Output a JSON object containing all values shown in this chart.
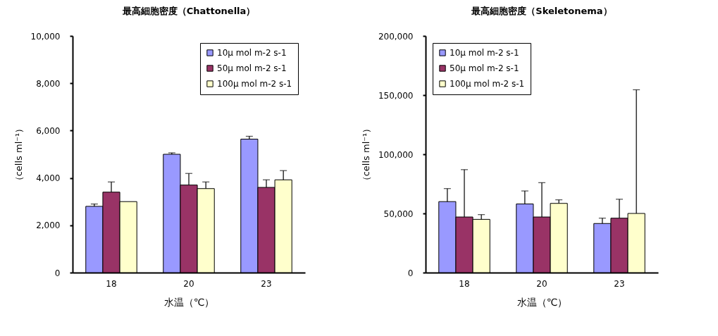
{
  "chart_data": [
    {
      "type": "bar",
      "title": "最高細胞密度（Chattonella）",
      "xlabel": "水温（℃）",
      "ylabel": "（cells ml⁻¹）",
      "categories": [
        "18",
        "20",
        "23"
      ],
      "ylim": [
        0,
        10000
      ],
      "yticks": [
        {
          "value": 0,
          "label": "0"
        },
        {
          "value": 2000,
          "label": "2,000"
        },
        {
          "value": 4000,
          "label": "4,000"
        },
        {
          "value": 6000,
          "label": "6,000"
        },
        {
          "value": 8000,
          "label": "8,000"
        },
        {
          "value": 10000,
          "label": "10,000"
        }
      ],
      "legend": "top right",
      "series": [
        {
          "name": "10μ mol m-2 s-1",
          "color": "#9999ff",
          "values": [
            2800,
            5000,
            5640
          ],
          "errors": [
            100,
            60,
            120
          ]
        },
        {
          "name": "50μ mol m-2 s-1",
          "color": "#993366",
          "values": [
            3400,
            3700,
            3600
          ],
          "errors": [
            430,
            490,
            320
          ]
        },
        {
          "name": "100μ mol m-2 s-1",
          "color": "#ffffcc",
          "values": [
            3000,
            3550,
            3920
          ],
          "errors": [
            null,
            280,
            390
          ]
        }
      ]
    },
    {
      "type": "bar",
      "title": "最高細胞密度（Skeletonema）",
      "xlabel": "水温（℃）",
      "ylabel": "（cells ml⁻¹）",
      "categories": [
        "18",
        "20",
        "23"
      ],
      "ylim": [
        0,
        200000
      ],
      "yticks": [
        {
          "value": 0,
          "label": "0"
        },
        {
          "value": 50000,
          "label": "50,000"
        },
        {
          "value": 100000,
          "label": "100,000"
        },
        {
          "value": 150000,
          "label": "150,000"
        },
        {
          "value": 200000,
          "label": "200,000"
        }
      ],
      "legend": "top left",
      "series": [
        {
          "name": "10μ mol m-2 s-1",
          "color": "#9999ff",
          "values": [
            60000,
            58000,
            41500
          ],
          "errors": [
            11000,
            11000,
            4500
          ]
        },
        {
          "name": "50μ mol m-2 s-1",
          "color": "#993366",
          "values": [
            47000,
            47000,
            46000
          ],
          "errors": [
            40000,
            29000,
            16000
          ]
        },
        {
          "name": "100μ mol m-2 s-1",
          "color": "#ffffcc",
          "values": [
            45000,
            58500,
            50000
          ],
          "errors": [
            4000,
            3000,
            104500
          ]
        }
      ]
    }
  ]
}
